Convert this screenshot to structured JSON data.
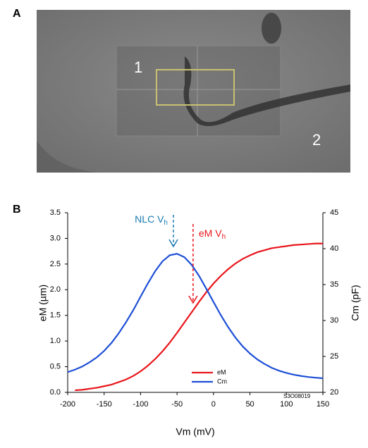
{
  "panels": {
    "a": {
      "label": "A",
      "regions": [
        "1",
        "2"
      ]
    },
    "b": {
      "label": "B"
    }
  },
  "chart_data": {
    "type": "line",
    "x_label": "Vm (mV)",
    "y_label": "eM (µm)",
    "y2_label": "Cm (pF)",
    "x": [
      -200,
      -190,
      -180,
      -170,
      -160,
      -150,
      -140,
      -130,
      -120,
      -110,
      -100,
      -90,
      -80,
      -70,
      -60,
      -50,
      -40,
      -30,
      -20,
      -10,
      0,
      10,
      20,
      30,
      40,
      50,
      60,
      70,
      80,
      90,
      100,
      110,
      120,
      130,
      140,
      150
    ],
    "series": [
      {
        "name": "eM",
        "color": "#e8151b",
        "axis": "y",
        "values": [
          null,
          0.04,
          0.05,
          0.07,
          0.09,
          0.12,
          0.15,
          0.2,
          0.25,
          0.32,
          0.41,
          0.52,
          0.65,
          0.8,
          0.97,
          1.16,
          1.36,
          1.56,
          1.76,
          1.95,
          2.12,
          2.27,
          2.4,
          2.51,
          2.6,
          2.67,
          2.73,
          2.77,
          2.81,
          2.83,
          2.85,
          2.87,
          2.88,
          2.89,
          2.9,
          2.9
        ]
      },
      {
        "name": "Cm",
        "color": "#1d4fd6",
        "axis": "y2",
        "values": [
          22.82,
          23.16,
          23.6,
          24.18,
          24.88,
          25.77,
          26.87,
          28.22,
          29.76,
          31.45,
          33.33,
          35.17,
          36.87,
          38.24,
          39.09,
          39.29,
          38.82,
          37.75,
          36.24,
          34.44,
          32.58,
          30.75,
          29.09,
          27.63,
          26.4,
          25.4,
          24.59,
          23.95,
          23.41,
          23.01,
          22.7,
          22.46,
          22.28,
          22.14,
          22.04,
          21.96
        ]
      }
    ],
    "xlim": [
      -200,
      150
    ],
    "xticks": [
      -200,
      -150,
      -100,
      -50,
      0,
      50,
      100,
      150
    ],
    "ylim": [
      0,
      3.5
    ],
    "yticks": [
      {
        "value": 0,
        "label": "0.0"
      },
      0.5,
      {
        "value": 1,
        "label": "1.0"
      },
      1.5,
      {
        "value": 2,
        "label": "2.0"
      },
      2.5,
      {
        "value": 3,
        "label": "3.0"
      },
      3.5
    ],
    "y2lim": [
      20,
      45
    ],
    "y2ticks": [
      20,
      25,
      30,
      35,
      40,
      45
    ],
    "legend": "lower center",
    "annotations": [
      {
        "text": "NLC V",
        "subscript": "h",
        "x": -55,
        "color": "#1a7ab5"
      },
      {
        "text": "eM V",
        "subscript": "h",
        "x": -28,
        "color": "#e8151b"
      }
    ],
    "stamp": "S3O08019"
  }
}
